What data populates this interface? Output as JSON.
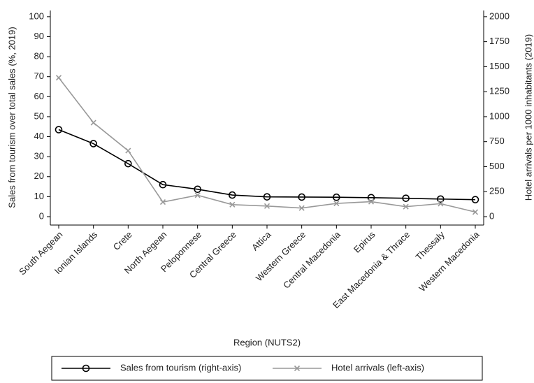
{
  "chart_data": {
    "type": "line",
    "x_label": "Region (NUTS2)",
    "y_label": "Sales from tourism over total sales (%, 2019)",
    "y2_label": "Hotel arrivals per 1000 inhabitants (2019)",
    "categories": [
      "South Aegean",
      "Ionian Islands",
      "Crete",
      "North Aegean",
      "Peloponnese",
      "Central Greece",
      "Attica",
      "Western Greece",
      "Central Macedonia",
      "Epirus",
      "East Macedonia & Thrace",
      "Thessaly",
      "Western Macedonia"
    ],
    "series": [
      {
        "name": "Sales from tourism (right-axis)",
        "color": "#000000",
        "marker": "circle",
        "values": [
          43.5,
          36.5,
          26.5,
          16,
          13.7,
          10.8,
          9.9,
          9.8,
          9.7,
          9.5,
          9.2,
          8.8,
          8.5
        ]
      },
      {
        "name": "Hotel arrivals (left-axis)",
        "color": "#999999",
        "marker": "x",
        "axis": "y2",
        "values": [
          1390,
          940,
          660,
          146,
          214,
          120,
          106,
          86,
          132,
          150,
          100,
          130,
          46
        ]
      }
    ],
    "ylim": [
      -4.2,
      103.1
    ],
    "yticks": [
      0,
      10,
      20,
      30,
      40,
      50,
      60,
      70,
      80,
      90,
      100
    ],
    "y2lim": [
      -84,
      2062
    ],
    "y2ticks": [
      0,
      250,
      500,
      750,
      1000,
      1250,
      1500,
      1750,
      2000
    ],
    "legend": "bottom"
  }
}
